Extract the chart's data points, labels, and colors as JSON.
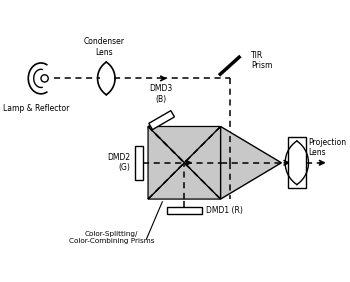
{
  "bg_color": "#ffffff",
  "line_color": "#000000",
  "prism_fill": "#c8c8c8",
  "prism_edge": "#000000",
  "dashed_color": "#000000",
  "labels": {
    "lamp": "Lamp & Reflector",
    "condenser": "Condenser\nLens",
    "dmd3": "DMD3\n(B)",
    "dmd2": "DMD2\n(G)",
    "dmd1": "DMD1 (R)",
    "tir": "TIR\nPrism",
    "projection": "Projection\nLens",
    "color_split": "Color-Splitting/\nColor-Combining Prisms"
  },
  "figsize": [
    3.5,
    2.82
  ],
  "dpi": 100
}
